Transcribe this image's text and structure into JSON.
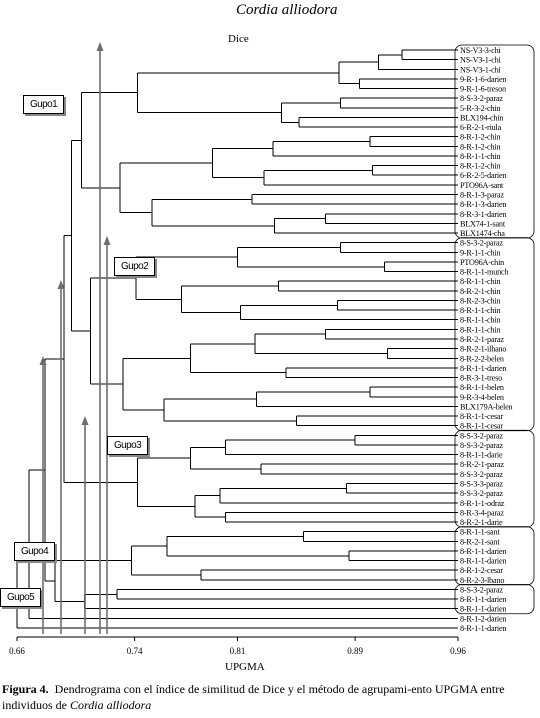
{
  "chart_data": {
    "type": "dendrogram",
    "title": "Cordia alliodora",
    "subtitle": "Dice",
    "xlabel": "UPGMA",
    "x_ticks": [
      "0.66",
      "0.74",
      "0.81",
      "0.89",
      "0.96"
    ],
    "xlim": [
      0.66,
      0.96
    ],
    "groups": [
      "Gupo1",
      "Gupo2",
      "Gupo3",
      "Gupo4",
      "Gupo5"
    ],
    "leaves": [
      "NS-V3-3-chi",
      "NS-V3-1-chi",
      "NS-V3-1-chi",
      "9-R-1-6-darien",
      "9-R-1-6-treson",
      "8-S-3-2-paraz",
      "5-R-3-2-chin",
      "BLX194-chin",
      "6-R-2-1-riula",
      "8-R-1-2-chin",
      "8-R-1-2-chin",
      "8-R-1-1-chin",
      "8-R-1-2-chin",
      "6-R-2-5-darien",
      "PTO96A-sant",
      "8-R-1-3-paraz",
      "8-R-1-3-darien",
      "8-R-3-1-darien",
      "BLX74-1-sant",
      "BLX1474-cha",
      "8-S-3-2-paraz",
      "9-R-1-1-chin",
      "PTO96A-chin",
      "8-R-1-1-munch",
      "8-R-1-1-chin",
      "8-R-2-1-chin",
      "8-R-2-3-chin",
      "8-R-1-1-chin",
      "8-R-1-1-chin",
      "8-R-1-1-chin",
      "8-R-2-1-paraz",
      "8-R-2-1-ilhano",
      "8-R-2-2-belen",
      "8-R-1-1-darien",
      "8-R-3-1-treso",
      "8-R-1-1-belen",
      "9-R-3-4-belen",
      "BLX179A-belen",
      "8-R-1-1-cesar",
      "8-R-1-1-cesar",
      "8-S-3-2-paraz",
      "8-S-3-2-paraz",
      "8-R-1-1-darie",
      "8-R-2-1-paraz",
      "8-S-3-2-paraz",
      "8-S-3-3-paraz",
      "8-S-3-2-paraz",
      "8-R-1-1-odraz",
      "8-R-3-4-paraz",
      "8-R-2-1-darie",
      "8-R-1-1-sant",
      "8-R-2-1-sant",
      "8-R-1-1-darien",
      "8-R-1-1-darien",
      "8-R-1-2-cesar",
      "8-R-2-3-lbano",
      "8-S-3-2-paraz",
      "8-R-1-1-darien",
      "8-R-1-1-darien",
      "8-R-1-2-darien",
      "8-R-1-1-darien"
    ]
  },
  "caption": {
    "label": "Figura 4.",
    "text": "Dendrograma con el índice de similitud de Dice y el método de agrupami-ento UPGMA entre individuos de ",
    "species": "Cordia alliodora"
  },
  "colors": {
    "line": "#000000",
    "arrow": "#6e6e6e"
  }
}
